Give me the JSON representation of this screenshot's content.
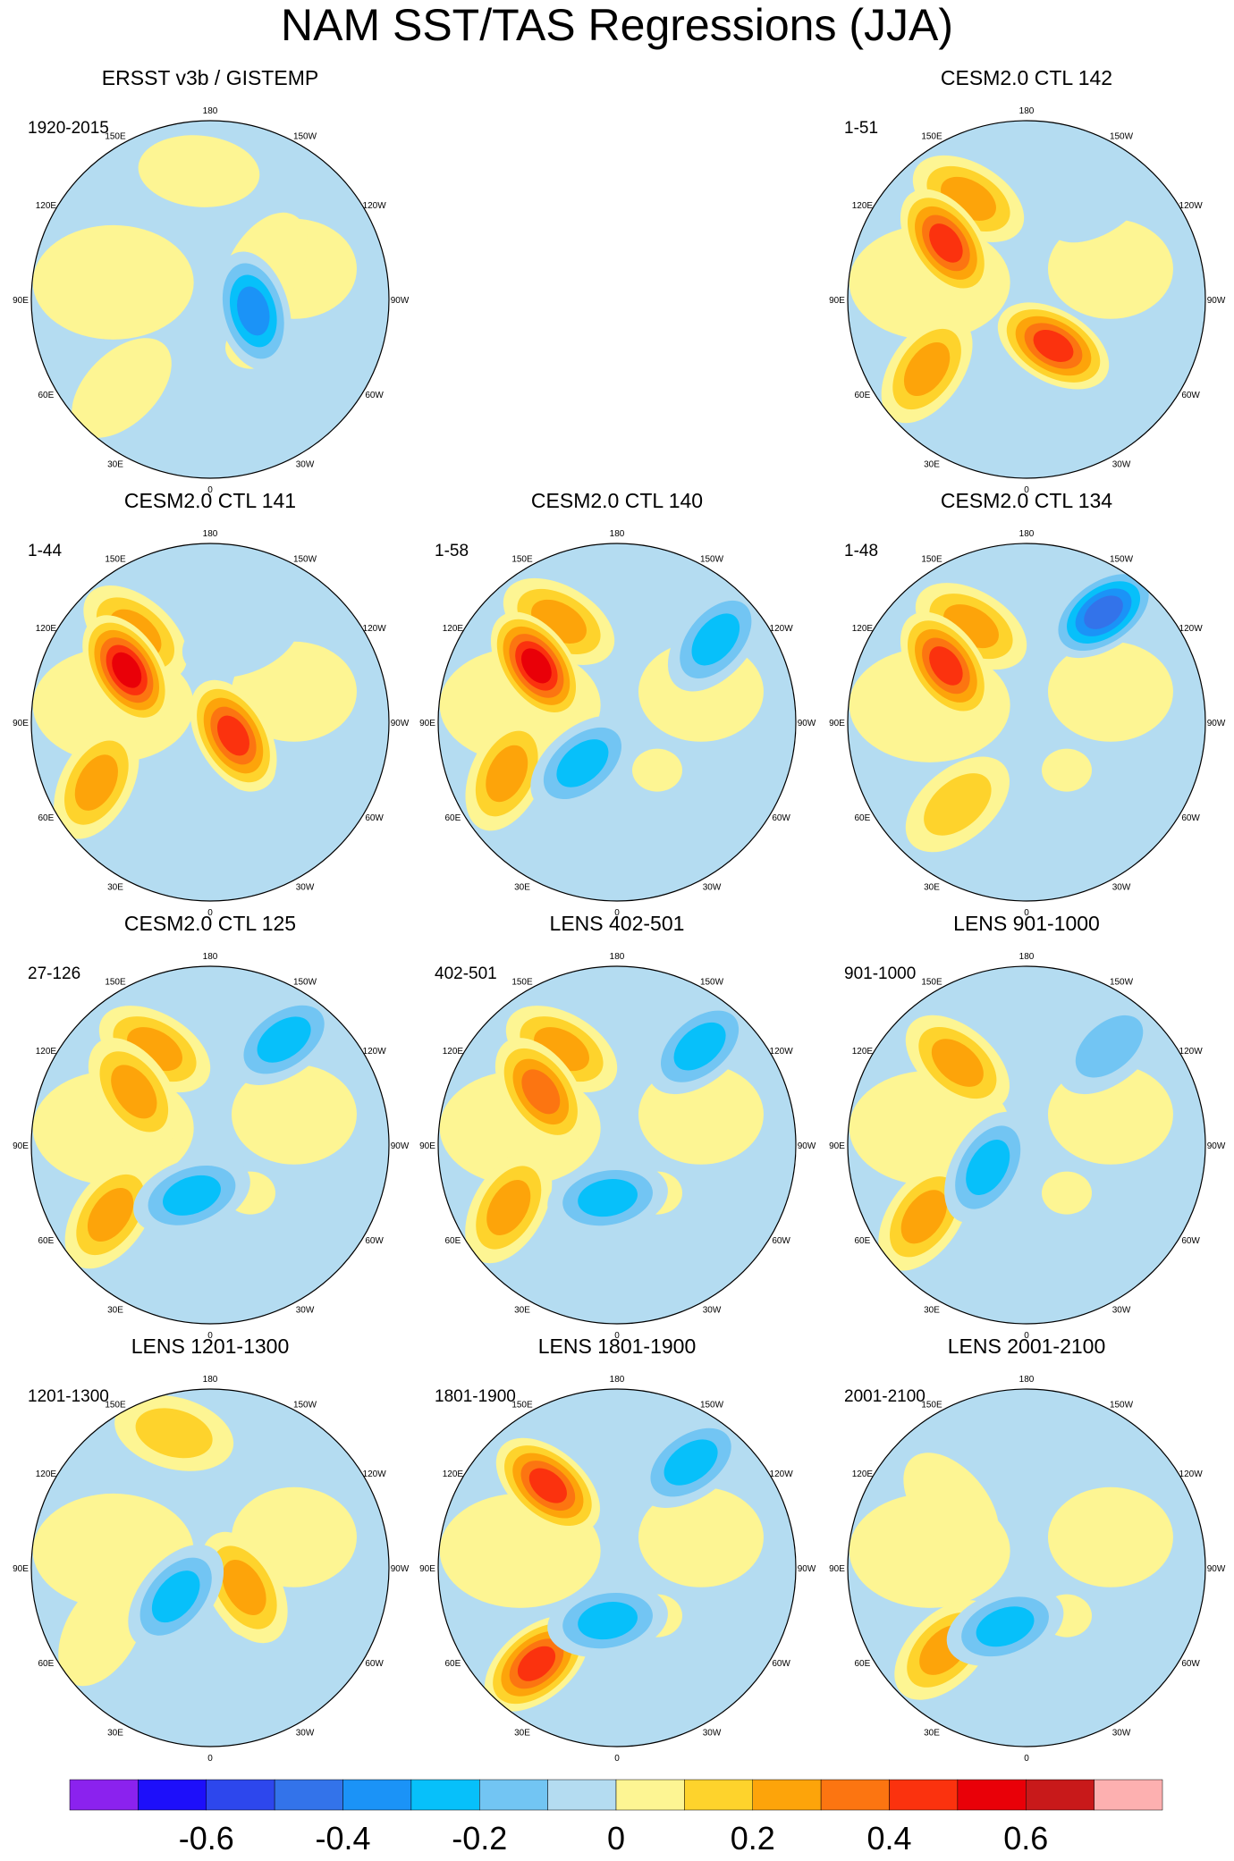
{
  "figure": {
    "title": "NAM SST/TAS Regressions (JJA)",
    "longitude_labels": [
      "180",
      "150E",
      "120E",
      "90E",
      "60E",
      "30E",
      "0",
      "30W",
      "60W",
      "90W",
      "120W",
      "150W"
    ]
  },
  "chart_data": {
    "type": "heatmap",
    "projection": "north polar stereographic",
    "panels": [
      {
        "title": "ERSST v3b / GISTEMP",
        "period": "1920-2015",
        "anomalies": [
          {
            "lon": 240,
            "r": 0.35,
            "v": 0.1
          },
          {
            "lon": 45,
            "r": 0.7,
            "v": 0.15
          },
          {
            "lon": 175,
            "r": 0.72,
            "v": 0.05
          },
          {
            "lon": 285,
            "r": 0.25,
            "v": -0.4
          }
        ]
      },
      {
        "title": "",
        "period": "",
        "empty": true,
        "anomalies": []
      },
      {
        "title": "CESM2.0 CTL 142",
        "period": "1-51",
        "anomalies": [
          {
            "lon": 150,
            "r": 0.65,
            "v": 0.35
          },
          {
            "lon": 125,
            "r": 0.55,
            "v": 0.45
          },
          {
            "lon": 55,
            "r": 0.68,
            "v": 0.3
          },
          {
            "lon": 330,
            "r": 0.3,
            "v": 0.5
          },
          {
            "lon": 215,
            "r": 0.7,
            "v": -0.15
          }
        ]
      },
      {
        "title": "CESM2.0 CTL 141",
        "period": "1-44",
        "anomalies": [
          {
            "lon": 140,
            "r": 0.65,
            "v": 0.3
          },
          {
            "lon": 122,
            "r": 0.55,
            "v": 0.55
          },
          {
            "lon": 62,
            "r": 0.72,
            "v": 0.3
          },
          {
            "lon": 300,
            "r": 0.15,
            "v": 0.45
          },
          {
            "lon": 200,
            "r": 0.5,
            "v": -0.15
          }
        ]
      },
      {
        "title": "CESM2.0 CTL 140",
        "period": "1-58",
        "anomalies": [
          {
            "lon": 150,
            "r": 0.65,
            "v": 0.3
          },
          {
            "lon": 125,
            "r": 0.55,
            "v": 0.55
          },
          {
            "lon": 230,
            "r": 0.72,
            "v": -0.25
          },
          {
            "lon": 65,
            "r": 0.68,
            "v": 0.3
          },
          {
            "lon": 40,
            "r": 0.3,
            "v": -0.3
          }
        ]
      },
      {
        "title": "CESM2.0 CTL 134",
        "period": "1-48",
        "anomalies": [
          {
            "lon": 215,
            "r": 0.75,
            "v": -0.45
          },
          {
            "lon": 150,
            "r": 0.62,
            "v": 0.35
          },
          {
            "lon": 125,
            "r": 0.55,
            "v": 0.5
          },
          {
            "lon": 40,
            "r": 0.6,
            "v": 0.2
          }
        ]
      },
      {
        "title": "CESM2.0 CTL 125",
        "period": "27-126",
        "anomalies": [
          {
            "lon": 215,
            "r": 0.72,
            "v": -0.35
          },
          {
            "lon": 150,
            "r": 0.62,
            "v": 0.3
          },
          {
            "lon": 125,
            "r": 0.52,
            "v": 0.35
          },
          {
            "lon": 55,
            "r": 0.68,
            "v": 0.25
          },
          {
            "lon": 20,
            "r": 0.3,
            "v": -0.3
          }
        ]
      },
      {
        "title": "LENS 402-501",
        "period": "402-501",
        "anomalies": [
          {
            "lon": 220,
            "r": 0.72,
            "v": -0.3
          },
          {
            "lon": 150,
            "r": 0.62,
            "v": 0.25
          },
          {
            "lon": 125,
            "r": 0.52,
            "v": 0.4
          },
          {
            "lon": 60,
            "r": 0.7,
            "v": 0.25
          },
          {
            "lon": 10,
            "r": 0.3,
            "v": -0.25
          }
        ]
      },
      {
        "title": "LENS 901-1000",
        "period": "901-1000",
        "anomalies": [
          {
            "lon": 220,
            "r": 0.72,
            "v": -0.2
          },
          {
            "lon": 140,
            "r": 0.6,
            "v": 0.25
          },
          {
            "lon": 55,
            "r": 0.7,
            "v": 0.3
          },
          {
            "lon": 60,
            "r": 0.25,
            "v": -0.3
          }
        ]
      },
      {
        "title": "LENS 1201-1300",
        "period": "1201-1300",
        "anomalies": [
          {
            "lon": 165,
            "r": 0.78,
            "v": 0.22
          },
          {
            "lon": 60,
            "r": 0.7,
            "v": 0.15
          },
          {
            "lon": 300,
            "r": 0.22,
            "v": 0.3
          },
          {
            "lon": 50,
            "r": 0.25,
            "v": -0.25
          }
        ]
      },
      {
        "title": "LENS 1801-1900",
        "period": "1801-1900",
        "anomalies": [
          {
            "lon": 140,
            "r": 0.6,
            "v": 0.45
          },
          {
            "lon": 215,
            "r": 0.72,
            "v": -0.25
          },
          {
            "lon": 40,
            "r": 0.7,
            "v": 0.45
          },
          {
            "lon": 10,
            "r": 0.3,
            "v": -0.25
          }
        ]
      },
      {
        "title": "LENS 2001-2100",
        "period": "2001-2100",
        "anomalies": [
          {
            "lon": 130,
            "r": 0.55,
            "v": 0.15
          },
          {
            "lon": 45,
            "r": 0.65,
            "v": 0.35
          },
          {
            "lon": 20,
            "r": 0.35,
            "v": -0.3
          }
        ]
      }
    ],
    "colorbar": {
      "levels": [
        -0.7,
        -0.6,
        -0.5,
        -0.4,
        -0.3,
        -0.2,
        -0.1,
        0,
        0.1,
        0.2,
        0.3,
        0.4,
        0.5,
        0.6,
        0.7
      ],
      "colors": [
        "#8b22ee",
        "#1d0ffa",
        "#2d47ed",
        "#3373ea",
        "#1b93f7",
        "#07c0fa",
        "#72c5f3",
        "#b4dcf1",
        "#fdf593",
        "#fed32c",
        "#fda40a",
        "#fc7511",
        "#fb320e",
        "#e90008",
        "#c8191a",
        "#fdb0b0"
      ],
      "tick_values": [
        -0.6,
        -0.4,
        -0.2,
        0,
        0.2,
        0.4,
        0.6
      ],
      "tick_labels": [
        "-0.6",
        "-0.4",
        "-0.2",
        "0",
        "0.2",
        "0.4",
        "0.6"
      ]
    }
  }
}
